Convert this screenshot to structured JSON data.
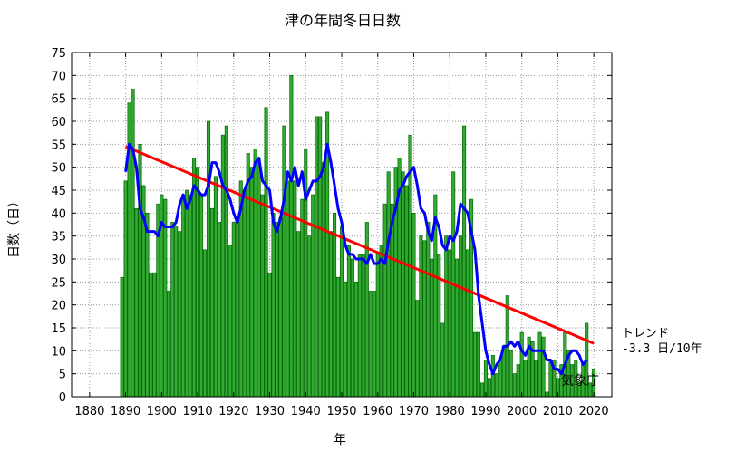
{
  "chart_data": {
    "type": "bar",
    "title": "津の年間冬日日数",
    "xlabel": "年",
    "ylabel": "日数（日）",
    "xlim": [
      1875,
      2025
    ],
    "ylim": [
      0,
      75
    ],
    "xticks": [
      1880,
      1890,
      1900,
      1910,
      1920,
      1930,
      1940,
      1950,
      1960,
      1970,
      1980,
      1990,
      2000,
      2010,
      2020
    ],
    "yticks": [
      0,
      5,
      10,
      15,
      20,
      25,
      30,
      35,
      40,
      45,
      50,
      55,
      60,
      65,
      70,
      75
    ],
    "grid": true,
    "colors": {
      "bars": "#33aa33",
      "bar_edge": "#006600",
      "moving_average": "#0000ff",
      "trend": "#ff0000"
    },
    "series": [
      {
        "kind": "bar",
        "x": [
          1889,
          1890,
          1891,
          1892,
          1893,
          1894,
          1895,
          1896,
          1897,
          1898,
          1899,
          1900,
          1901,
          1902,
          1903,
          1904,
          1905,
          1906,
          1907,
          1908,
          1909,
          1910,
          1911,
          1912,
          1913,
          1914,
          1915,
          1916,
          1917,
          1918,
          1919,
          1920,
          1921,
          1922,
          1923,
          1924,
          1925,
          1926,
          1927,
          1928,
          1929,
          1930,
          1931,
          1932,
          1933,
          1934,
          1935,
          1936,
          1937,
          1938,
          1939,
          1940,
          1941,
          1942,
          1943,
          1944,
          1945,
          1946,
          1947,
          1948,
          1949,
          1950,
          1951,
          1952,
          1953,
          1954,
          1955,
          1956,
          1957,
          1958,
          1959,
          1960,
          1961,
          1962,
          1963,
          1964,
          1965,
          1966,
          1967,
          1968,
          1969,
          1970,
          1971,
          1972,
          1973,
          1974,
          1975,
          1976,
          1977,
          1978,
          1979,
          1980,
          1981,
          1982,
          1983,
          1984,
          1985,
          1986,
          1987,
          1988,
          1989,
          1990,
          1991,
          1992,
          1993,
          1994,
          1995,
          1996,
          1997,
          1998,
          1999,
          2000,
          2001,
          2002,
          2003,
          2004,
          2005,
          2006,
          2007,
          2008,
          2009,
          2010,
          2011,
          2012,
          2013,
          2014,
          2015,
          2016,
          2017,
          2018,
          2019,
          2020
        ],
        "values": [
          26,
          47,
          64,
          67,
          41,
          55,
          46,
          40,
          27,
          27,
          42,
          44,
          43,
          23,
          38,
          37,
          36,
          44,
          45,
          44,
          52,
          50,
          44,
          32,
          60,
          41,
          48,
          38,
          57,
          59,
          33,
          38,
          39,
          47,
          45,
          53,
          50,
          54,
          52,
          44,
          63,
          27,
          40,
          38,
          39,
          59,
          47,
          70,
          47,
          36,
          43,
          54,
          35,
          44,
          61,
          61,
          51,
          62,
          36,
          40,
          26,
          37,
          25,
          33,
          30,
          25,
          31,
          31,
          38,
          23,
          23,
          31,
          33,
          42,
          49,
          42,
          50,
          52,
          49,
          46,
          57,
          40,
          21,
          35,
          34,
          38,
          30,
          44,
          31,
          16,
          35,
          32,
          49,
          30,
          35,
          59,
          32,
          43,
          14,
          14,
          3,
          8,
          4,
          9,
          5,
          8,
          11,
          22,
          10,
          5,
          7,
          14,
          8,
          13,
          12,
          8,
          14,
          13,
          1,
          8,
          8,
          4,
          7,
          14,
          10,
          7,
          8,
          3,
          7,
          16,
          3,
          6
        ],
        "name": ""
      },
      {
        "kind": "line",
        "name": "",
        "x": [
          1890,
          1891,
          1892,
          1893,
          1894,
          1895,
          1896,
          1897,
          1898,
          1899,
          1900,
          1901,
          1902,
          1903,
          1904,
          1905,
          1906,
          1907,
          1908,
          1909,
          1910,
          1911,
          1912,
          1913,
          1914,
          1915,
          1916,
          1917,
          1918,
          1919,
          1920,
          1921,
          1922,
          1923,
          1924,
          1925,
          1926,
          1927,
          1928,
          1929,
          1930,
          1931,
          1932,
          1933,
          1934,
          1935,
          1936,
          1937,
          1938,
          1939,
          1940,
          1941,
          1942,
          1943,
          1944,
          1945,
          1946,
          1947,
          1948,
          1949,
          1950,
          1951,
          1952,
          1953,
          1954,
          1955,
          1956,
          1957,
          1958,
          1959,
          1960,
          1961,
          1962,
          1963,
          1964,
          1965,
          1966,
          1967,
          1968,
          1969,
          1970,
          1971,
          1972,
          1973,
          1974,
          1975,
          1976,
          1977,
          1978,
          1979,
          1980,
          1981,
          1982,
          1983,
          1984,
          1985,
          1986,
          1987,
          1988,
          1989,
          1990,
          1991,
          1992,
          1993,
          1994,
          1995,
          1996,
          1997,
          1998,
          1999,
          2000,
          2001,
          2002,
          2003,
          2004,
          2005,
          2006,
          2007,
          2008,
          2009,
          2010,
          2011,
          2012,
          2013,
          2014,
          2015,
          2016,
          2017,
          2018
        ],
        "values": [
          49,
          55,
          54,
          50,
          41,
          39,
          36,
          36,
          36,
          35,
          38,
          37,
          37,
          37,
          38,
          42,
          44,
          41,
          43,
          46,
          45,
          44,
          44,
          46,
          51,
          51,
          49,
          46,
          45,
          43,
          40,
          38,
          41,
          45,
          47,
          48,
          51,
          52,
          47,
          46,
          45,
          38,
          36,
          39,
          43,
          49,
          47,
          50,
          46,
          49,
          43,
          45,
          47,
          47,
          48,
          50,
          55,
          51,
          46,
          41,
          38,
          33,
          31,
          31,
          30,
          30,
          30,
          29,
          31,
          29,
          29,
          30,
          29,
          34,
          38,
          41,
          45,
          46,
          48,
          49,
          50,
          46,
          41,
          40,
          36,
          34,
          39,
          37,
          33,
          32,
          35,
          34,
          36,
          42,
          41,
          40,
          36,
          32,
          22,
          16,
          10,
          7,
          5,
          7,
          8,
          11,
          11,
          12,
          11,
          12,
          10,
          9,
          11,
          10,
          10,
          10,
          10,
          8,
          8,
          6,
          6,
          5,
          7,
          9,
          10,
          10,
          9,
          7,
          8
        ]
      },
      {
        "kind": "trend",
        "name": "",
        "x": [
          1890,
          2020
        ],
        "values": [
          54.5,
          11.6
        ]
      }
    ],
    "annotations": {
      "trend_label": "トレンド",
      "trend_value": "-3.3 日/10年",
      "credit": "気象庁"
    }
  }
}
